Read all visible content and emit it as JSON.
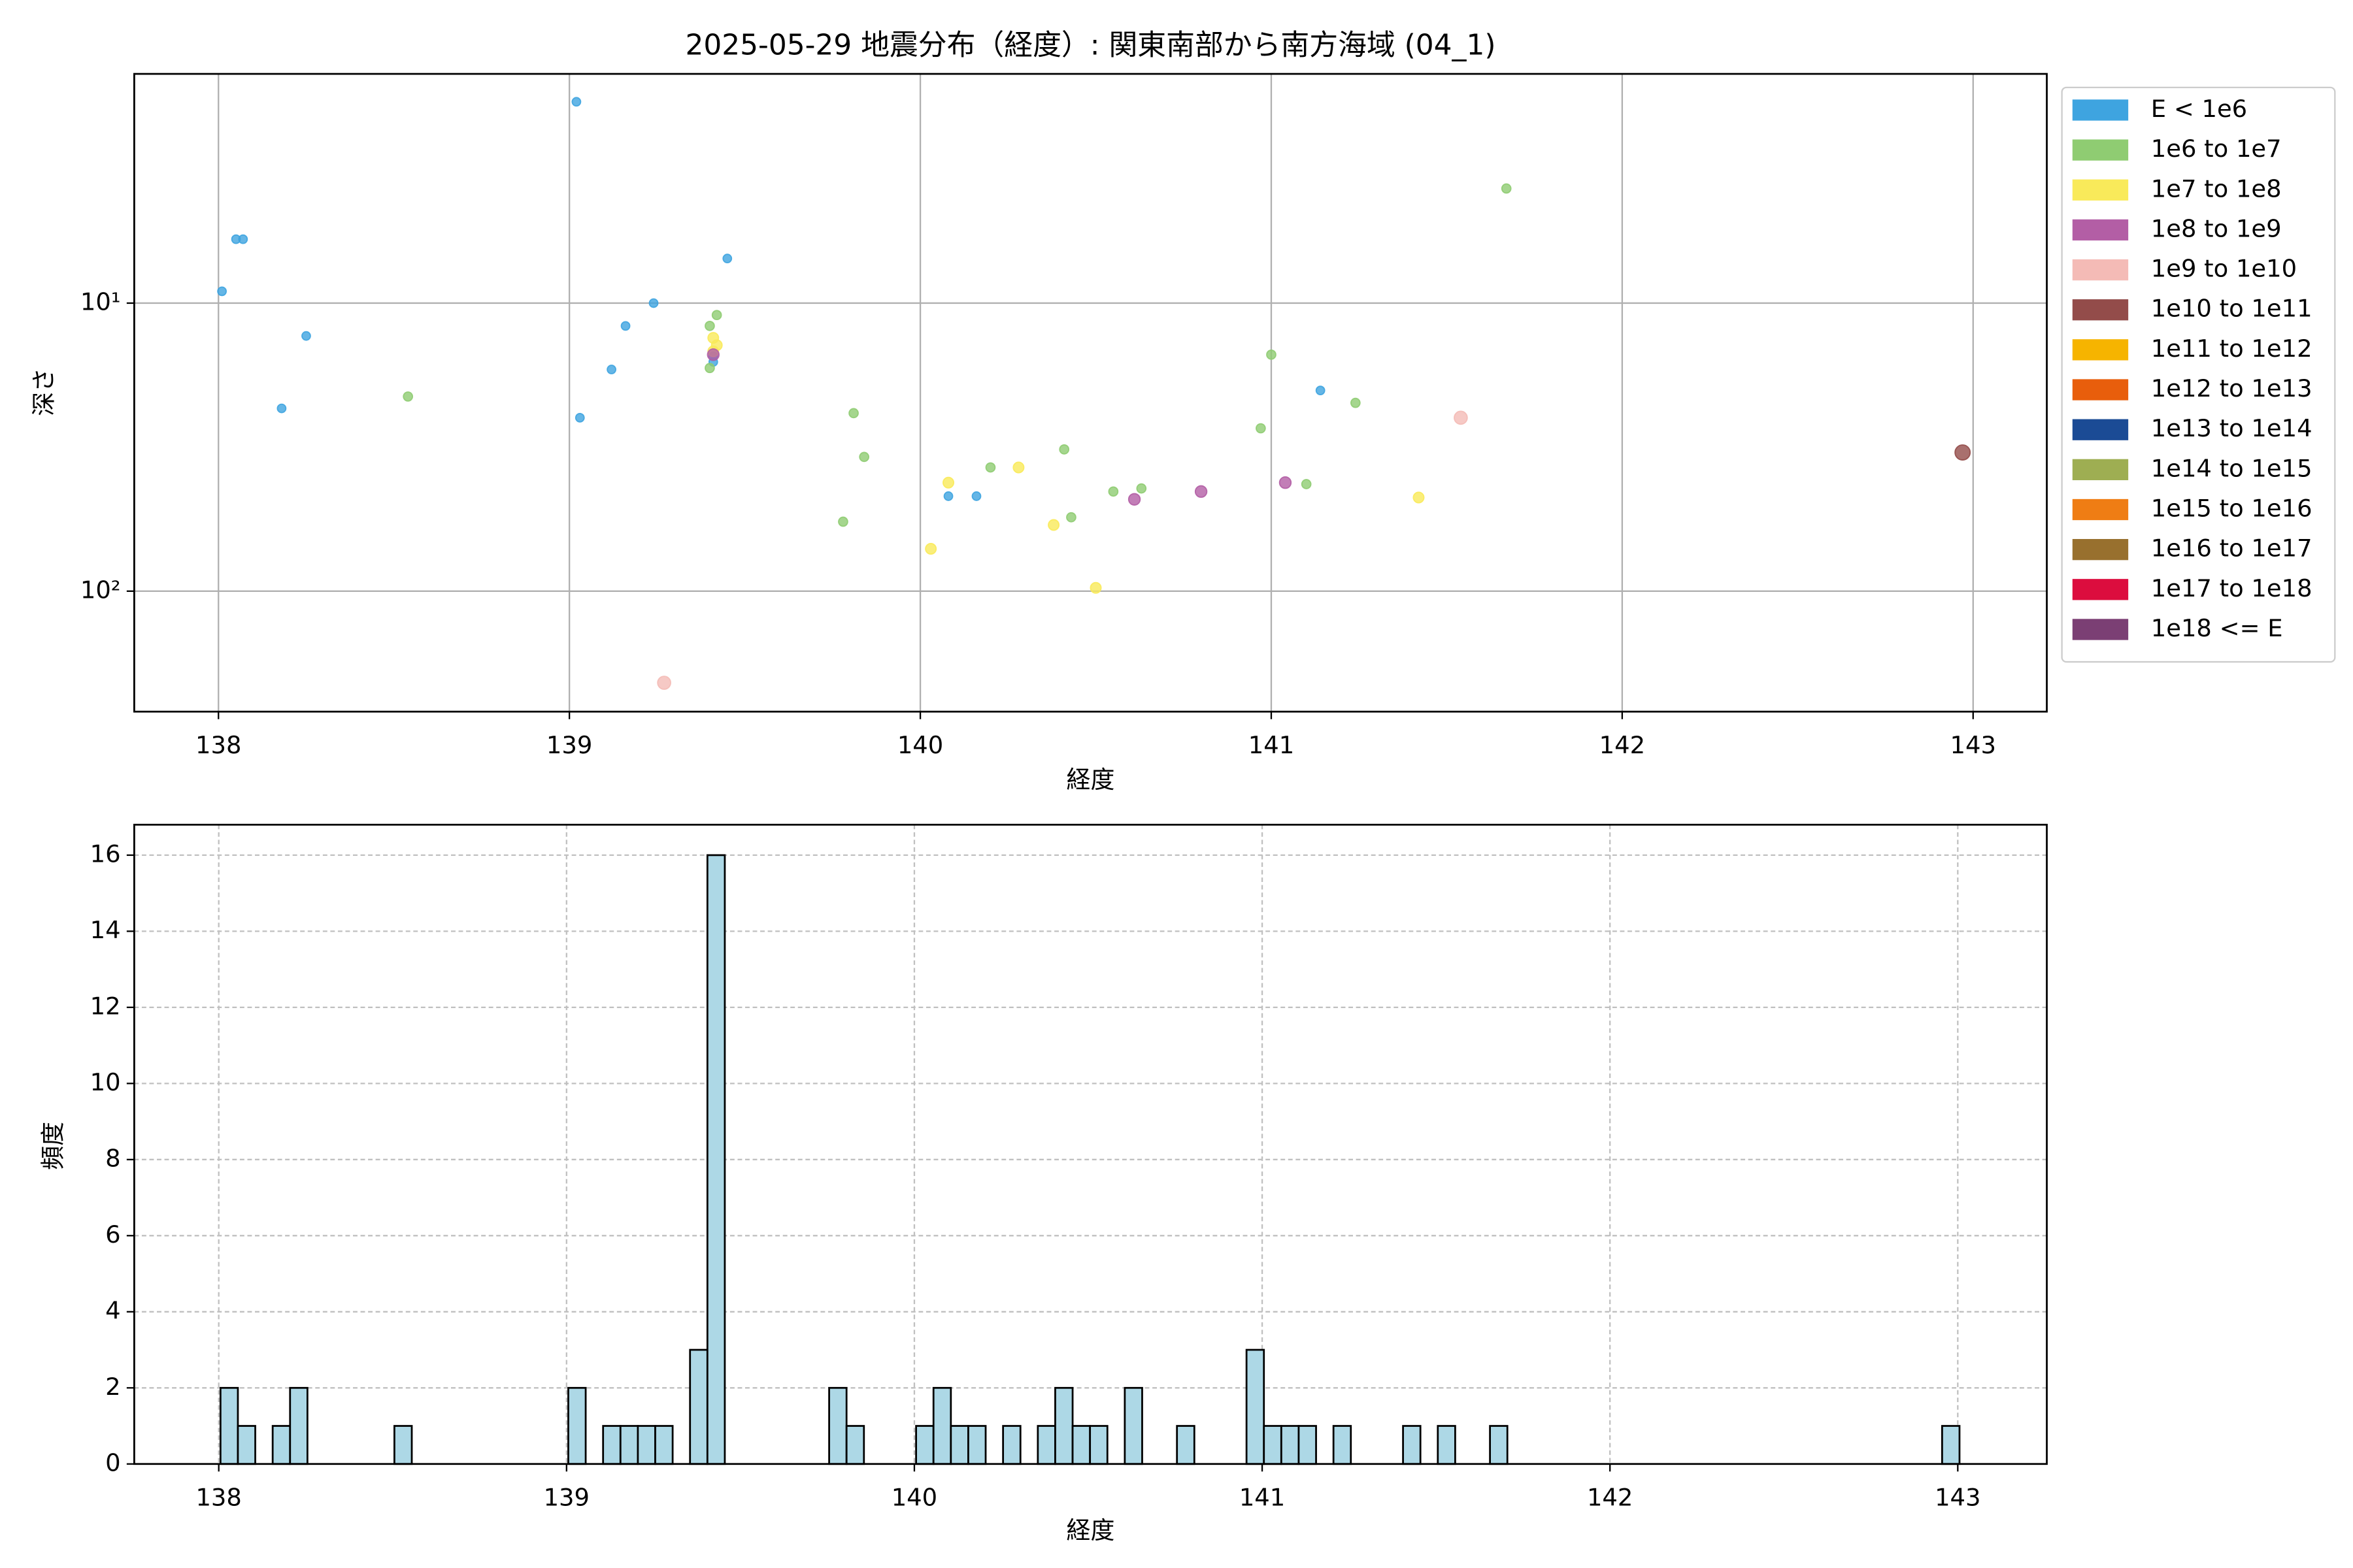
{
  "chart_data": [
    {
      "type": "scatter",
      "title": "2025-05-29 地震分布（経度）: 関東南部から南方海域 (04_1)",
      "xlabel": "経度",
      "ylabel": "深さ",
      "xlim": [
        137.76,
        143.21
      ],
      "xticks": [
        138,
        139,
        140,
        141,
        142,
        143
      ],
      "ylim": [
        1.6,
        262
      ],
      "y_log": true,
      "y_inverted": true,
      "yticks": [
        {
          "value": 10,
          "label": "10¹"
        },
        {
          "value": 100,
          "label": "10²"
        }
      ],
      "grid": true,
      "grid_style": "solid",
      "legend": "outside-upper-right",
      "series": [
        {
          "name": "E < 1e6",
          "color": "#3ea4e0",
          "size": 2.8,
          "x": [
            139.02,
            138.01,
            138.05,
            138.07,
            138.25,
            138.18,
            139.24,
            139.16,
            139.12,
            139.03,
            139.45,
            139.41,
            139.41,
            140.08,
            140.16,
            141.14
          ],
          "values": [
            2.0,
            9.1,
            6.0,
            6.0,
            13.0,
            23.2,
            10.0,
            12.0,
            17.0,
            25.0,
            7.0,
            16.0,
            15.3,
            46.8,
            46.8,
            20.1
          ]
        },
        {
          "name": "1e6 to 1e7",
          "color": "#8fcc72",
          "size": 3.0,
          "x": [
            141.67,
            138.54,
            139.4,
            139.42,
            139.4,
            139.81,
            139.84,
            139.78,
            140.2,
            140.41,
            140.43,
            140.55,
            140.63,
            141.0,
            140.97,
            141.24,
            141.1
          ],
          "values": [
            4.0,
            21.1,
            12.0,
            11.0,
            16.8,
            24.1,
            34.2,
            57.4,
            37.2,
            32.2,
            55.4,
            45.1,
            44.0,
            15.1,
            27.2,
            22.2,
            42.5
          ]
        },
        {
          "name": "1e7 to 1e8",
          "color": "#f9ea5a",
          "size": 3.5,
          "x": [
            139.41,
            139.42,
            139.41,
            140.08,
            140.28,
            140.38,
            140.03,
            140.5,
            141.42
          ],
          "values": [
            13.2,
            14.0,
            14.7,
            42.0,
            37.2,
            58.9,
            71.3,
            97.4,
            47.3
          ]
        },
        {
          "name": "1e8 to 1e9",
          "color": "#b35ea5",
          "size": 3.8,
          "x": [
            139.41,
            140.61,
            140.8,
            141.04
          ],
          "values": [
            15.1,
            48.0,
            45.1,
            42.0
          ]
        },
        {
          "name": "1e9 to 1e10",
          "color": "#f4bbb6",
          "size": 4.3,
          "x": [
            139.27,
            141.54
          ],
          "values": [
            208,
            25.0
          ]
        },
        {
          "name": "1e10 to 1e11",
          "color": "#934c4a",
          "size": 5.0,
          "x": [
            142.97
          ],
          "values": [
            33.0
          ]
        },
        {
          "name": "1e11 to 1e12",
          "color": "#f6b400",
          "x": [],
          "values": []
        },
        {
          "name": "1e12 to 1e13",
          "color": "#e85e0c",
          "x": [],
          "values": []
        },
        {
          "name": "1e13 to 1e14",
          "color": "#1b4b95",
          "x": [],
          "values": []
        },
        {
          "name": "1e14 to 1e15",
          "color": "#9eae52",
          "x": [],
          "values": []
        },
        {
          "name": "1e15 to 1e16",
          "color": "#ef7d14",
          "x": [],
          "values": []
        },
        {
          "name": "1e16 to 1e17",
          "color": "#98702e",
          "x": [],
          "values": []
        },
        {
          "name": "1e17 to 1e18",
          "color": "#dc0d3e",
          "x": [],
          "values": []
        },
        {
          "name": "1e18 <= E",
          "color": "#7b3f74",
          "x": [],
          "values": []
        }
      ]
    },
    {
      "type": "histogram",
      "xlabel": "経度",
      "ylabel": "頻度",
      "color": "#add8e6",
      "edgecolor": "#000000",
      "xlim": [
        137.757,
        143.256
      ],
      "xticks": [
        138,
        139,
        140,
        141,
        142,
        143
      ],
      "ylim": [
        0,
        16.8
      ],
      "yticks": [
        0,
        2,
        4,
        6,
        8,
        10,
        12,
        14,
        16
      ],
      "grid": true,
      "grid_style": "dashed",
      "bins": [
        138.005,
        138.055,
        138.105,
        138.155,
        138.205,
        138.255,
        138.305,
        138.355,
        138.405,
        138.455,
        138.505,
        138.555,
        138.605,
        138.655,
        138.705,
        138.755,
        138.805,
        138.855,
        138.905,
        138.955,
        139.005,
        139.055,
        139.105,
        139.155,
        139.205,
        139.255,
        139.305,
        139.355,
        139.405,
        139.455,
        139.505,
        139.555,
        139.605,
        139.655,
        139.705,
        139.755,
        139.805,
        139.855,
        139.905,
        139.955,
        140.005,
        140.055,
        140.105,
        140.155,
        140.205,
        140.255,
        140.305,
        140.355,
        140.405,
        140.455,
        140.505,
        140.555,
        140.605,
        140.655,
        140.705,
        140.755,
        140.805,
        140.855,
        140.905,
        140.955,
        141.005,
        141.055,
        141.105,
        141.155,
        141.205,
        141.255,
        141.305,
        141.355,
        141.405,
        141.455,
        141.505,
        141.555,
        141.605,
        141.655,
        141.705,
        141.755,
        141.805,
        141.855,
        141.905,
        141.955,
        142.005,
        142.055,
        142.105,
        142.155,
        142.205,
        142.255,
        142.305,
        142.355,
        142.405,
        142.455,
        142.505,
        142.555,
        142.605,
        142.655,
        142.705,
        142.755,
        142.805,
        142.855,
        142.905,
        142.955,
        143.005
      ],
      "values": [
        2,
        1,
        0,
        1,
        2,
        0,
        0,
        0,
        0,
        0,
        1,
        0,
        0,
        0,
        0,
        0,
        0,
        0,
        0,
        0,
        2,
        0,
        1,
        1,
        1,
        1,
        0,
        3,
        16,
        0,
        0,
        0,
        0,
        0,
        0,
        2,
        1,
        0,
        0,
        0,
        1,
        2,
        1,
        1,
        0,
        1,
        0,
        1,
        2,
        1,
        1,
        0,
        2,
        0,
        0,
        1,
        0,
        0,
        0,
        3,
        1,
        1,
        1,
        0,
        1,
        0,
        0,
        0,
        1,
        0,
        1,
        0,
        0,
        1,
        0,
        0,
        0,
        0,
        0,
        0,
        0,
        0,
        0,
        0,
        0,
        0,
        0,
        0,
        0,
        0,
        0,
        0,
        0,
        0,
        0,
        0,
        0,
        0,
        0,
        1
      ]
    }
  ]
}
